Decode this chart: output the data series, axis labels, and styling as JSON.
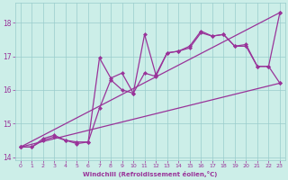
{
  "xlabel": "Windchill (Refroidissement éolien,°C)",
  "bg_color": "#cceee8",
  "line_color": "#993399",
  "grid_color": "#99cccc",
  "tick_color": "#993399",
  "label_color": "#993399",
  "xlim": [
    -0.5,
    23.5
  ],
  "ylim": [
    13.9,
    18.6
  ],
  "yticks": [
    14,
    15,
    16,
    17,
    18
  ],
  "xticks": [
    0,
    1,
    2,
    3,
    4,
    5,
    6,
    7,
    8,
    9,
    10,
    11,
    12,
    13,
    14,
    15,
    16,
    17,
    18,
    19,
    20,
    21,
    22,
    23
  ],
  "series1_x": [
    0,
    1,
    2,
    3,
    4,
    5,
    6,
    7,
    8,
    9,
    10,
    11,
    12,
    13,
    14,
    15,
    16,
    17,
    18,
    19,
    20,
    21,
    22,
    23
  ],
  "series1_y": [
    14.3,
    14.3,
    14.5,
    14.6,
    14.5,
    14.4,
    14.45,
    15.45,
    16.3,
    16.0,
    15.9,
    16.5,
    16.4,
    17.1,
    17.15,
    17.25,
    17.7,
    17.6,
    17.65,
    17.3,
    17.3,
    16.7,
    16.7,
    16.2
  ],
  "series2_x": [
    0,
    1,
    2,
    3,
    4,
    5,
    6,
    7,
    8,
    9,
    10,
    11,
    12,
    13,
    14,
    15,
    16,
    17,
    18,
    19,
    20,
    21,
    22,
    23
  ],
  "series2_y": [
    14.3,
    14.3,
    14.55,
    14.65,
    14.5,
    14.45,
    14.45,
    16.95,
    16.35,
    16.5,
    15.9,
    17.65,
    16.45,
    17.1,
    17.15,
    17.3,
    17.75,
    17.6,
    17.65,
    17.3,
    17.35,
    16.7,
    16.7,
    18.3
  ],
  "series3_x": [
    0,
    23
  ],
  "series3_y": [
    14.3,
    16.2
  ],
  "series4_x": [
    0,
    23
  ],
  "series4_y": [
    14.3,
    18.3
  ]
}
